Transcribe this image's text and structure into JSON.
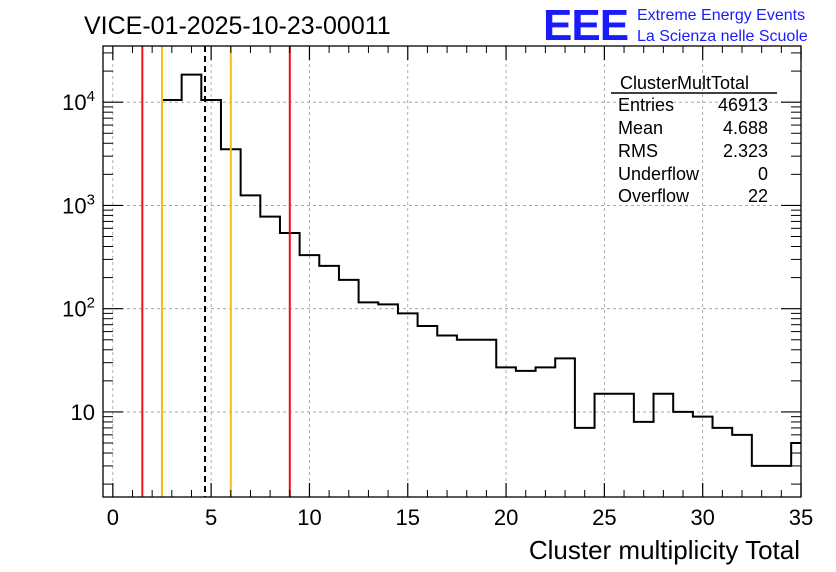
{
  "header": {
    "run_title": "VICE-01-2025-10-23-00011",
    "logo_text": "EEE",
    "logo_line1": "Extreme Energy Events",
    "logo_line2": "La Scienza nelle Scuole",
    "logo_color": "#1a1aff"
  },
  "stats_box": {
    "title": "ClusterMultTotal",
    "rows": [
      {
        "label": "Entries",
        "value": "46913"
      },
      {
        "label": "Mean",
        "value": "4.688"
      },
      {
        "label": "RMS",
        "value": "2.323"
      },
      {
        "label": "Underflow",
        "value": "0"
      },
      {
        "label": "Overflow",
        "value": "22"
      }
    ]
  },
  "chart_data": {
    "type": "histogram",
    "title": "VICE-01-2025-10-23-00011",
    "xlabel": "Cluster multiplicity Total",
    "ylabel": "",
    "xlim": [
      -0.5,
      35
    ],
    "ylim": [
      1.5,
      35000
    ],
    "yscale": "log",
    "grid": true,
    "x_ticks": [
      "0",
      "5",
      "10",
      "15",
      "20",
      "25",
      "30",
      "35"
    ],
    "y_ticks": [
      {
        "value": 10,
        "base": "10",
        "exp": ""
      },
      {
        "value": 100,
        "base": "10",
        "exp": "2"
      },
      {
        "value": 1000,
        "base": "10",
        "exp": "3"
      },
      {
        "value": 10000,
        "base": "10",
        "exp": "4"
      }
    ],
    "bin_edges": [
      2.5,
      3.5,
      4.5,
      5.5,
      6.5,
      7.5,
      8.5,
      9.5,
      10.5,
      11.5,
      12.5,
      13.5,
      14.5,
      15.5,
      16.5,
      17.5,
      18.5,
      19.5,
      20.5,
      21.5,
      22.5,
      23.5,
      24.5,
      25.5,
      26.5,
      27.5,
      28.5,
      29.5,
      30.5,
      31.5,
      32.5,
      33.5,
      34.5,
      35
    ],
    "bin_values": [
      10500,
      18500,
      10500,
      3500,
      1250,
      780,
      540,
      330,
      260,
      190,
      115,
      110,
      90,
      68,
      55,
      50,
      50,
      27,
      25,
      27,
      33,
      7,
      15,
      15,
      8,
      15,
      10,
      9,
      7,
      6,
      3,
      3,
      5
    ],
    "vertical_lines": [
      {
        "x": 1.5,
        "color": "#e8141a",
        "style": "solid"
      },
      {
        "x": 2.5,
        "color": "#f2c012",
        "style": "solid"
      },
      {
        "x": 4.688,
        "color": "#000000",
        "style": "dashed"
      },
      {
        "x": 6.0,
        "color": "#f2c012",
        "style": "solid"
      },
      {
        "x": 9.0,
        "color": "#e8141a",
        "style": "solid"
      }
    ]
  }
}
